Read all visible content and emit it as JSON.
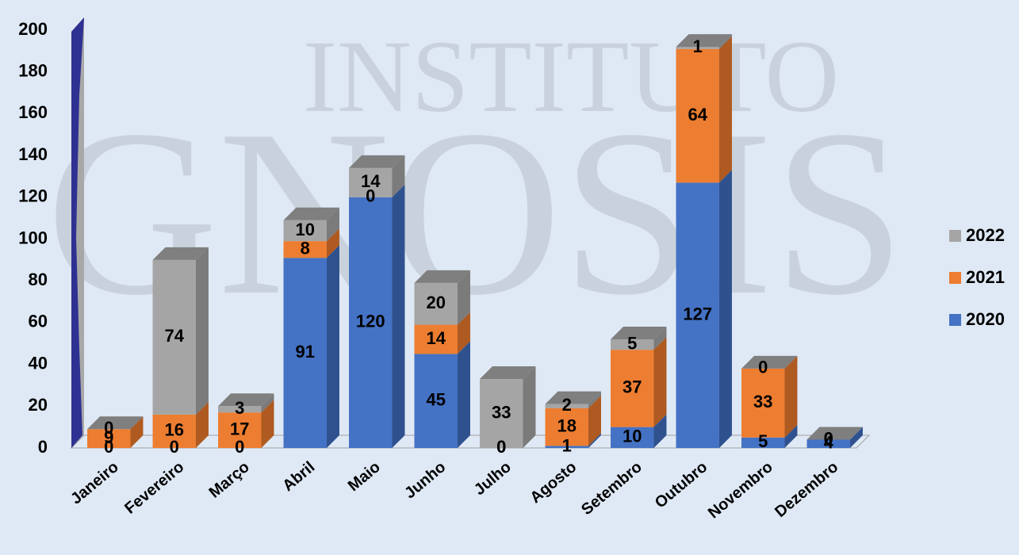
{
  "chart_data": {
    "type": "bar3d_stacked",
    "watermark_top": "INSTITUTO",
    "watermark_bottom": "GNOSIS",
    "categories": [
      "Janeiro",
      "Fevereiro",
      "Março",
      "Abril",
      "Maio",
      "Junho",
      "Julho",
      "Agosto",
      "Setembro",
      "Outubro",
      "Novembro",
      "Dezembro"
    ],
    "series": [
      {
        "name": "2020",
        "color": "#4472c4",
        "side": "#2f528f",
        "values": [
          0,
          0,
          0,
          91,
          120,
          45,
          0,
          1,
          10,
          127,
          5,
          4
        ]
      },
      {
        "name": "2021",
        "color": "#ed7d31",
        "side": "#ae5a21",
        "values": [
          9,
          16,
          17,
          8,
          0,
          14,
          0,
          18,
          37,
          64,
          33,
          0
        ]
      },
      {
        "name": "2022",
        "color": "#a5a5a5",
        "side": "#7b7b7b",
        "values": [
          0,
          74,
          3,
          10,
          14,
          20,
          33,
          2,
          5,
          1,
          0,
          0
        ]
      }
    ],
    "ylim": [
      0,
      200
    ],
    "yticks": [
      0,
      20,
      40,
      60,
      80,
      100,
      120,
      140,
      160,
      180,
      200
    ]
  }
}
